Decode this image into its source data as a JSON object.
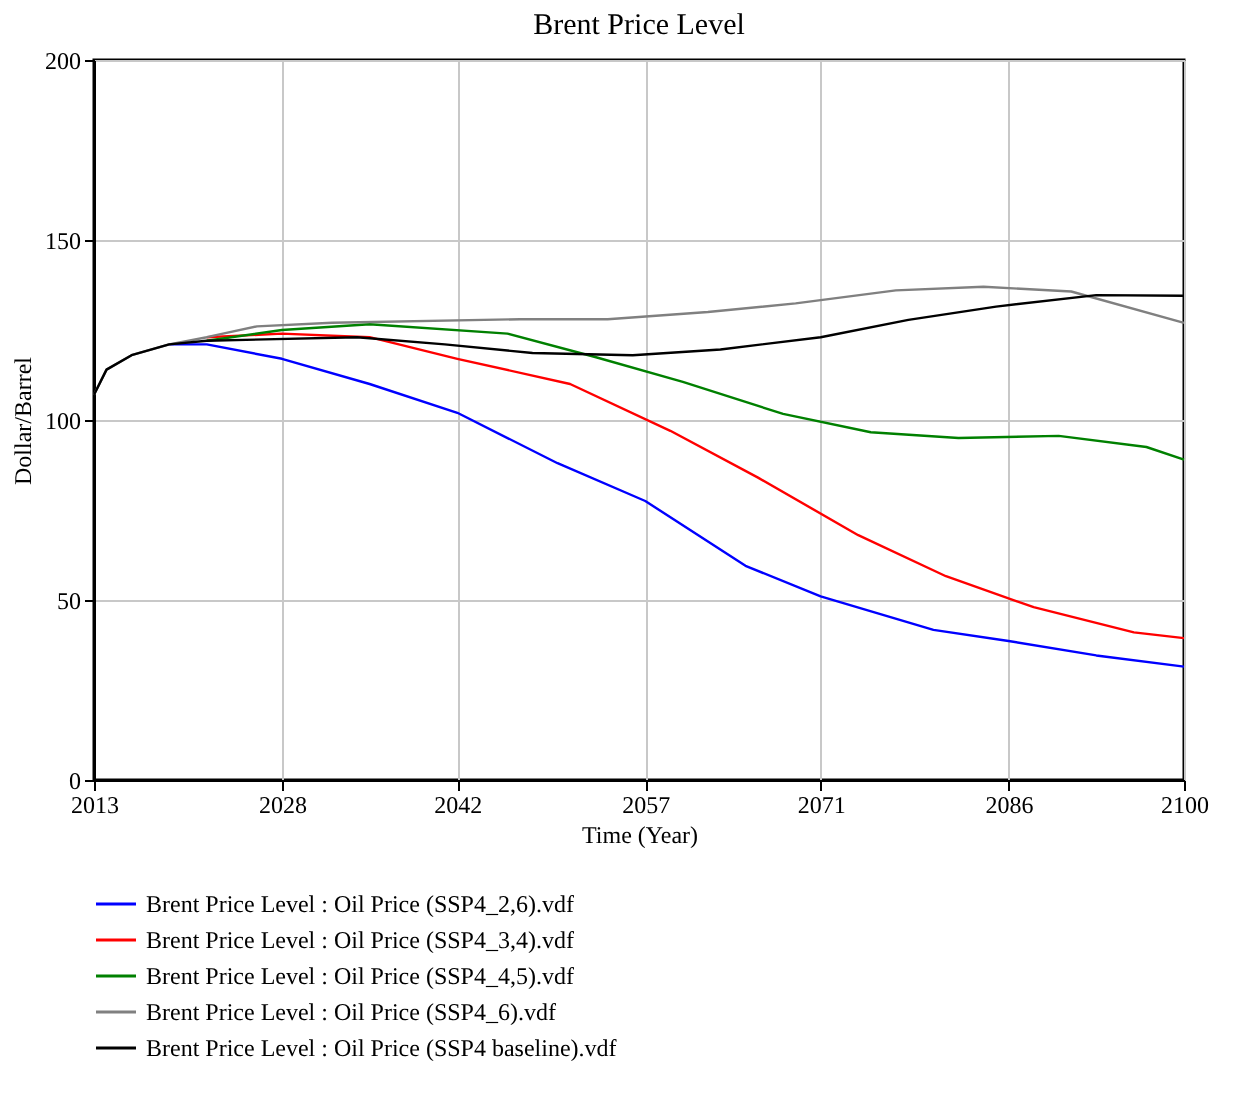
{
  "chart_data": {
    "type": "line",
    "title": "Brent Price Level",
    "xlabel": "Time (Year)",
    "ylabel": "Dollar/Barrel",
    "xlim": [
      2013,
      2100
    ],
    "xticks": [
      2013,
      2028,
      2042,
      2057,
      2071,
      2086,
      2100
    ],
    "ylim": [
      0,
      200
    ],
    "yticks": [
      0,
      50,
      100,
      150,
      200
    ],
    "grid": true,
    "legend": "bottom",
    "line_style": "solid",
    "series": [
      {
        "name": "Brent Price Level : Oil Price (SSP4_2,6).vdf",
        "color": "#0000ff",
        "x": [
          2019,
          2022,
          2028,
          2035,
          2042,
          2050,
          2057,
          2065,
          2071,
          2080,
          2086,
          2093,
          2100
        ],
        "values": [
          121,
          121,
          117,
          110,
          102,
          88,
          77.5,
          59.5,
          51,
          41.7,
          38.6,
          34.6,
          31.5
        ]
      },
      {
        "name": "Brent Price Level : Oil Price (SSP4_3,4).vdf",
        "color": "#ff0000",
        "x": [
          2022,
          2028,
          2035,
          2042,
          2051,
          2059,
          2066,
          2074,
          2081,
          2088,
          2096,
          2100
        ],
        "values": [
          123,
          124,
          123,
          117,
          110,
          97,
          84,
          68,
          56.6,
          48,
          41,
          39.4
        ]
      },
      {
        "name": "Brent Price Level : Oil Price (SSP4_4,5).vdf",
        "color": "#008000",
        "x": [
          2022,
          2028,
          2035,
          2046,
          2053,
          2060,
          2068,
          2075,
          2082,
          2090,
          2097,
          2100
        ],
        "values": [
          122,
          125,
          126.6,
          124,
          117.5,
          110.6,
          101.7,
          96.6,
          95,
          95.6,
          92.5,
          89
        ]
      },
      {
        "name": "Brent Price Level : Oil Price (SSP4_6).vdf",
        "color": "#808080",
        "x": [
          2013,
          2014,
          2016,
          2019,
          2022,
          2026,
          2032,
          2047,
          2054,
          2062,
          2069,
          2077,
          2084,
          2091,
          2100
        ],
        "values": [
          107,
          114,
          118,
          121,
          123,
          126,
          127,
          128,
          128,
          130,
          132.4,
          136,
          137,
          135.7,
          127
        ]
      },
      {
        "name": "Brent Price Level : Oil Price (SSP4  baseline).vdf",
        "color": "#000000",
        "x": [
          2013,
          2014,
          2016,
          2019,
          2022,
          2034,
          2041,
          2048,
          2056,
          2063,
          2071,
          2078,
          2085,
          2093,
          2100
        ],
        "values": [
          107,
          114,
          118,
          121,
          122,
          123,
          121,
          118.6,
          118,
          119.6,
          123,
          127.8,
          131.5,
          134.7,
          134.5
        ]
      }
    ]
  }
}
